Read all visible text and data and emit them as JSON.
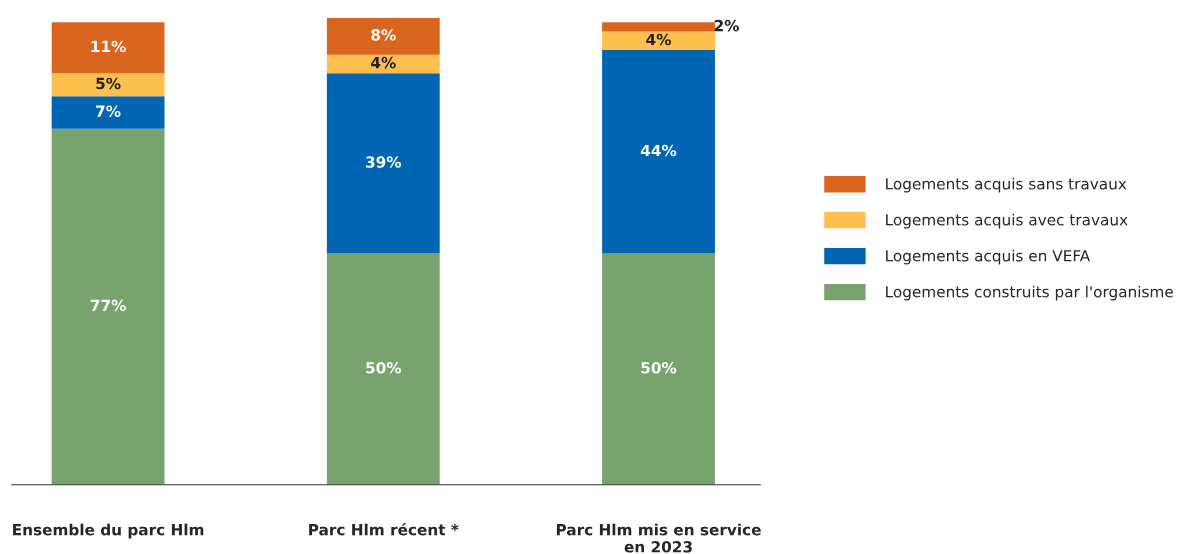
{
  "chart_data": {
    "type": "bar",
    "stacked": true,
    "legend": "right",
    "grid": false,
    "tick_labels": "x",
    "categories": [
      "Ensemble du parc Hlm",
      "Parc Hlm récent *",
      "Parc Hlm mis en service\nen 2023"
    ],
    "series": [
      {
        "name": "Logements construits par l'organisme",
        "color": "#78a36f",
        "values": [
          77,
          50,
          50
        ],
        "value_labels": [
          "77%",
          "50%",
          "50%"
        ]
      },
      {
        "name": "Logements acquis en VEFA",
        "color": "#0066b3",
        "values": [
          7,
          39,
          44
        ],
        "value_labels": [
          "7%",
          "39%",
          "44%"
        ]
      },
      {
        "name": "Logements acquis avec travaux",
        "color": "#fdbf4d",
        "values": [
          5,
          4,
          4
        ],
        "value_labels": [
          "5%",
          "4%",
          "4%"
        ]
      },
      {
        "name": "Logements acquis sans travaux",
        "color": "#d9661f",
        "values": [
          11,
          8,
          2
        ],
        "value_labels": [
          "11%",
          "8%",
          "2%"
        ]
      }
    ]
  }
}
